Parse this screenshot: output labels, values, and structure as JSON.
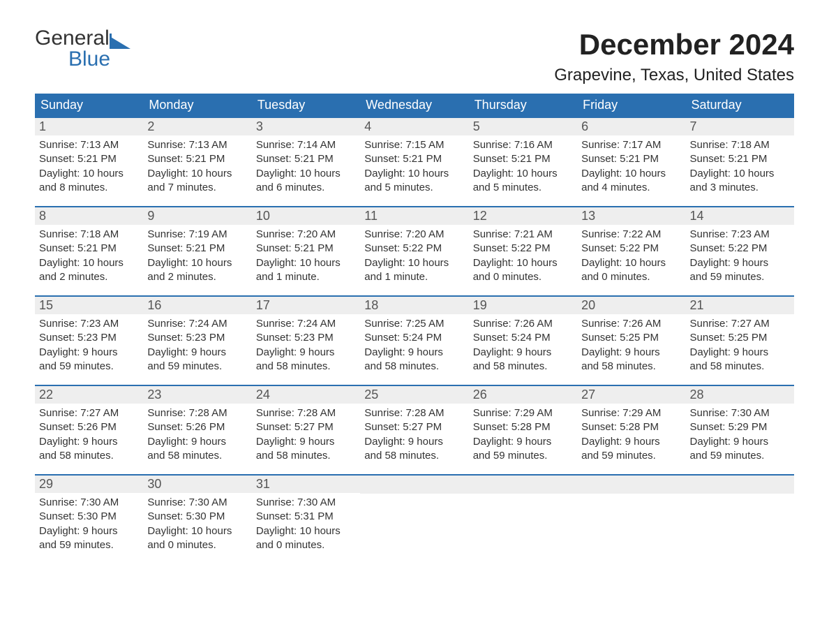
{
  "logo": {
    "text1": "General",
    "text2": "Blue",
    "color1": "#333333",
    "color2": "#2a6fb0"
  },
  "title": "December 2024",
  "location": "Grapevine, Texas, United States",
  "weekdays": [
    "Sunday",
    "Monday",
    "Tuesday",
    "Wednesday",
    "Thursday",
    "Friday",
    "Saturday"
  ],
  "colors": {
    "header_bg": "#2a6fb0",
    "header_text": "#ffffff",
    "row_top_border": "#2a6fb0",
    "daynum_bg": "#eeeeee",
    "body_text": "#333333"
  },
  "days": [
    {
      "n": "1",
      "sunrise": "Sunrise: 7:13 AM",
      "sunset": "Sunset: 5:21 PM",
      "dl1": "Daylight: 10 hours",
      "dl2": "and 8 minutes."
    },
    {
      "n": "2",
      "sunrise": "Sunrise: 7:13 AM",
      "sunset": "Sunset: 5:21 PM",
      "dl1": "Daylight: 10 hours",
      "dl2": "and 7 minutes."
    },
    {
      "n": "3",
      "sunrise": "Sunrise: 7:14 AM",
      "sunset": "Sunset: 5:21 PM",
      "dl1": "Daylight: 10 hours",
      "dl2": "and 6 minutes."
    },
    {
      "n": "4",
      "sunrise": "Sunrise: 7:15 AM",
      "sunset": "Sunset: 5:21 PM",
      "dl1": "Daylight: 10 hours",
      "dl2": "and 5 minutes."
    },
    {
      "n": "5",
      "sunrise": "Sunrise: 7:16 AM",
      "sunset": "Sunset: 5:21 PM",
      "dl1": "Daylight: 10 hours",
      "dl2": "and 5 minutes."
    },
    {
      "n": "6",
      "sunrise": "Sunrise: 7:17 AM",
      "sunset": "Sunset: 5:21 PM",
      "dl1": "Daylight: 10 hours",
      "dl2": "and 4 minutes."
    },
    {
      "n": "7",
      "sunrise": "Sunrise: 7:18 AM",
      "sunset": "Sunset: 5:21 PM",
      "dl1": "Daylight: 10 hours",
      "dl2": "and 3 minutes."
    },
    {
      "n": "8",
      "sunrise": "Sunrise: 7:18 AM",
      "sunset": "Sunset: 5:21 PM",
      "dl1": "Daylight: 10 hours",
      "dl2": "and 2 minutes."
    },
    {
      "n": "9",
      "sunrise": "Sunrise: 7:19 AM",
      "sunset": "Sunset: 5:21 PM",
      "dl1": "Daylight: 10 hours",
      "dl2": "and 2 minutes."
    },
    {
      "n": "10",
      "sunrise": "Sunrise: 7:20 AM",
      "sunset": "Sunset: 5:21 PM",
      "dl1": "Daylight: 10 hours",
      "dl2": "and 1 minute."
    },
    {
      "n": "11",
      "sunrise": "Sunrise: 7:20 AM",
      "sunset": "Sunset: 5:22 PM",
      "dl1": "Daylight: 10 hours",
      "dl2": "and 1 minute."
    },
    {
      "n": "12",
      "sunrise": "Sunrise: 7:21 AM",
      "sunset": "Sunset: 5:22 PM",
      "dl1": "Daylight: 10 hours",
      "dl2": "and 0 minutes."
    },
    {
      "n": "13",
      "sunrise": "Sunrise: 7:22 AM",
      "sunset": "Sunset: 5:22 PM",
      "dl1": "Daylight: 10 hours",
      "dl2": "and 0 minutes."
    },
    {
      "n": "14",
      "sunrise": "Sunrise: 7:23 AM",
      "sunset": "Sunset: 5:22 PM",
      "dl1": "Daylight: 9 hours",
      "dl2": "and 59 minutes."
    },
    {
      "n": "15",
      "sunrise": "Sunrise: 7:23 AM",
      "sunset": "Sunset: 5:23 PM",
      "dl1": "Daylight: 9 hours",
      "dl2": "and 59 minutes."
    },
    {
      "n": "16",
      "sunrise": "Sunrise: 7:24 AM",
      "sunset": "Sunset: 5:23 PM",
      "dl1": "Daylight: 9 hours",
      "dl2": "and 59 minutes."
    },
    {
      "n": "17",
      "sunrise": "Sunrise: 7:24 AM",
      "sunset": "Sunset: 5:23 PM",
      "dl1": "Daylight: 9 hours",
      "dl2": "and 58 minutes."
    },
    {
      "n": "18",
      "sunrise": "Sunrise: 7:25 AM",
      "sunset": "Sunset: 5:24 PM",
      "dl1": "Daylight: 9 hours",
      "dl2": "and 58 minutes."
    },
    {
      "n": "19",
      "sunrise": "Sunrise: 7:26 AM",
      "sunset": "Sunset: 5:24 PM",
      "dl1": "Daylight: 9 hours",
      "dl2": "and 58 minutes."
    },
    {
      "n": "20",
      "sunrise": "Sunrise: 7:26 AM",
      "sunset": "Sunset: 5:25 PM",
      "dl1": "Daylight: 9 hours",
      "dl2": "and 58 minutes."
    },
    {
      "n": "21",
      "sunrise": "Sunrise: 7:27 AM",
      "sunset": "Sunset: 5:25 PM",
      "dl1": "Daylight: 9 hours",
      "dl2": "and 58 minutes."
    },
    {
      "n": "22",
      "sunrise": "Sunrise: 7:27 AM",
      "sunset": "Sunset: 5:26 PM",
      "dl1": "Daylight: 9 hours",
      "dl2": "and 58 minutes."
    },
    {
      "n": "23",
      "sunrise": "Sunrise: 7:28 AM",
      "sunset": "Sunset: 5:26 PM",
      "dl1": "Daylight: 9 hours",
      "dl2": "and 58 minutes."
    },
    {
      "n": "24",
      "sunrise": "Sunrise: 7:28 AM",
      "sunset": "Sunset: 5:27 PM",
      "dl1": "Daylight: 9 hours",
      "dl2": "and 58 minutes."
    },
    {
      "n": "25",
      "sunrise": "Sunrise: 7:28 AM",
      "sunset": "Sunset: 5:27 PM",
      "dl1": "Daylight: 9 hours",
      "dl2": "and 58 minutes."
    },
    {
      "n": "26",
      "sunrise": "Sunrise: 7:29 AM",
      "sunset": "Sunset: 5:28 PM",
      "dl1": "Daylight: 9 hours",
      "dl2": "and 59 minutes."
    },
    {
      "n": "27",
      "sunrise": "Sunrise: 7:29 AM",
      "sunset": "Sunset: 5:28 PM",
      "dl1": "Daylight: 9 hours",
      "dl2": "and 59 minutes."
    },
    {
      "n": "28",
      "sunrise": "Sunrise: 7:30 AM",
      "sunset": "Sunset: 5:29 PM",
      "dl1": "Daylight: 9 hours",
      "dl2": "and 59 minutes."
    },
    {
      "n": "29",
      "sunrise": "Sunrise: 7:30 AM",
      "sunset": "Sunset: 5:30 PM",
      "dl1": "Daylight: 9 hours",
      "dl2": "and 59 minutes."
    },
    {
      "n": "30",
      "sunrise": "Sunrise: 7:30 AM",
      "sunset": "Sunset: 5:30 PM",
      "dl1": "Daylight: 10 hours",
      "dl2": "and 0 minutes."
    },
    {
      "n": "31",
      "sunrise": "Sunrise: 7:30 AM",
      "sunset": "Sunset: 5:31 PM",
      "dl1": "Daylight: 10 hours",
      "dl2": "and 0 minutes."
    }
  ],
  "layout": {
    "cols": 7,
    "rows": 5,
    "start_offset": 0,
    "trailing_empty": 4
  }
}
